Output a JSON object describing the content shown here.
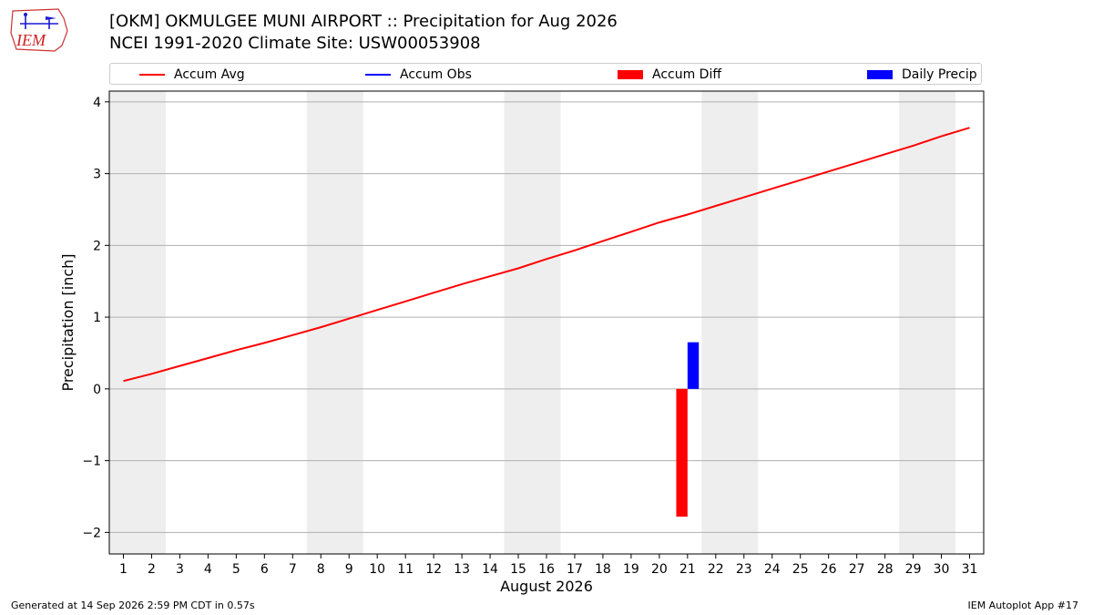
{
  "header": {
    "logo_text": "IEM",
    "title_line1": "[OKM] OKMULGEE MUNI AIRPORT :: Precipitation for Aug 2026",
    "title_line2": "NCEI 1991-2020 Climate Site: USW00053908"
  },
  "footer": {
    "generated": "Generated at 14 Sep 2026 2:59 PM CDT in 0.57s",
    "app": "IEM Autoplot App #17"
  },
  "chart_data": {
    "type": "bar",
    "xlabel": "August 2026",
    "ylabel": "Precipitation [inch]",
    "xlim": [
      0.5,
      31.5
    ],
    "ylim": [
      -2.3,
      4.15
    ],
    "x_ticks": [
      1,
      2,
      3,
      4,
      5,
      6,
      7,
      8,
      9,
      10,
      11,
      12,
      13,
      14,
      15,
      16,
      17,
      18,
      19,
      20,
      21,
      22,
      23,
      24,
      25,
      26,
      27,
      28,
      29,
      30,
      31
    ],
    "y_ticks": [
      -2,
      -1,
      0,
      1,
      2,
      3,
      4
    ],
    "y_tick_labels": [
      "−2",
      "−1",
      "0",
      "1",
      "2",
      "3",
      "4"
    ],
    "grid": "horizontal",
    "legend_position": "top",
    "weekend_shading": [
      [
        1,
        2
      ],
      [
        8,
        9
      ],
      [
        15,
        16
      ],
      [
        22,
        23
      ],
      [
        29,
        30
      ]
    ],
    "legend": [
      {
        "label": "Accum Avg",
        "kind": "line",
        "color": "#ff0000"
      },
      {
        "label": "Accum Obs",
        "kind": "line",
        "color": "#0000ff"
      },
      {
        "label": "Accum Diff",
        "kind": "box",
        "color": "#ff0000"
      },
      {
        "label": "Daily Precip",
        "kind": "box",
        "color": "#0000ff"
      }
    ],
    "series": [
      {
        "name": "Accum Avg",
        "type": "line",
        "color": "#ff0000",
        "x": [
          1,
          2,
          3,
          4,
          5,
          6,
          7,
          8,
          9,
          10,
          11,
          12,
          13,
          14,
          15,
          16,
          17,
          18,
          19,
          20,
          21,
          22,
          23,
          24,
          25,
          26,
          27,
          28,
          29,
          30,
          31
        ],
        "values": [
          0.11,
          0.21,
          0.32,
          0.43,
          0.54,
          0.64,
          0.75,
          0.86,
          0.98,
          1.1,
          1.22,
          1.34,
          1.46,
          1.57,
          1.68,
          1.81,
          1.93,
          2.06,
          2.19,
          2.32,
          2.43,
          2.55,
          2.67,
          2.79,
          2.91,
          3.03,
          3.15,
          3.27,
          3.39,
          3.52,
          3.64
        ]
      },
      {
        "name": "Accum Diff",
        "type": "bar",
        "color": "#ff0000",
        "x": [
          20.8
        ],
        "values": [
          -1.78
        ]
      },
      {
        "name": "Daily Precip",
        "type": "bar",
        "color": "#0000ff",
        "x": [
          21.2
        ],
        "values": [
          0.65
        ]
      }
    ]
  }
}
